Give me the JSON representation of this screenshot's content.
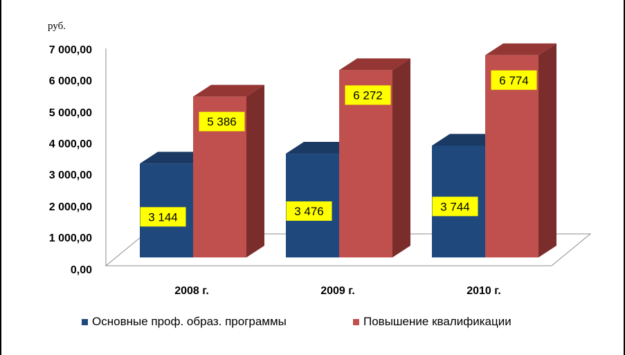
{
  "unit_label": "руб.",
  "colors": {
    "series_1": "#1f497d",
    "series_1_top": "#1b3a63",
    "series_2": "#c0504d",
    "series_2_top": "#943634",
    "series_2_side": "#7a2d2b",
    "series_1_side": "#17365d",
    "label_background": "#ffff00"
  },
  "chart_data": {
    "type": "bar",
    "categories": [
      "2008 г.",
      "2009 г.",
      "2010 г."
    ],
    "ylim": [
      0,
      7000
    ],
    "yticks": [
      "0,00",
      "1 000,00",
      "2 000,00",
      "3 000,00",
      "4 000,00",
      "5 000,00",
      "6 000,00",
      "7 000,00"
    ],
    "ytick_values": [
      0,
      1000,
      2000,
      3000,
      4000,
      5000,
      6000,
      7000
    ],
    "ylabel": "руб.",
    "grid": false,
    "legend_position": "bottom",
    "style": "3d-clustered-column",
    "series": [
      {
        "name": "Основные проф. образ. программы",
        "values": [
          3144,
          3476,
          3744
        ],
        "labels": [
          "3 144",
          "3 476",
          "3 744"
        ]
      },
      {
        "name": "Повышение квалификации",
        "values": [
          5386,
          6272,
          6774
        ],
        "labels": [
          "5 386",
          "6 272",
          "6 774"
        ]
      }
    ]
  },
  "legend": {
    "items": [
      {
        "label": "Основные проф. образ. программы",
        "color": "#1f497d"
      },
      {
        "label": "Повышение квалификации",
        "color": "#c0504d"
      }
    ]
  }
}
